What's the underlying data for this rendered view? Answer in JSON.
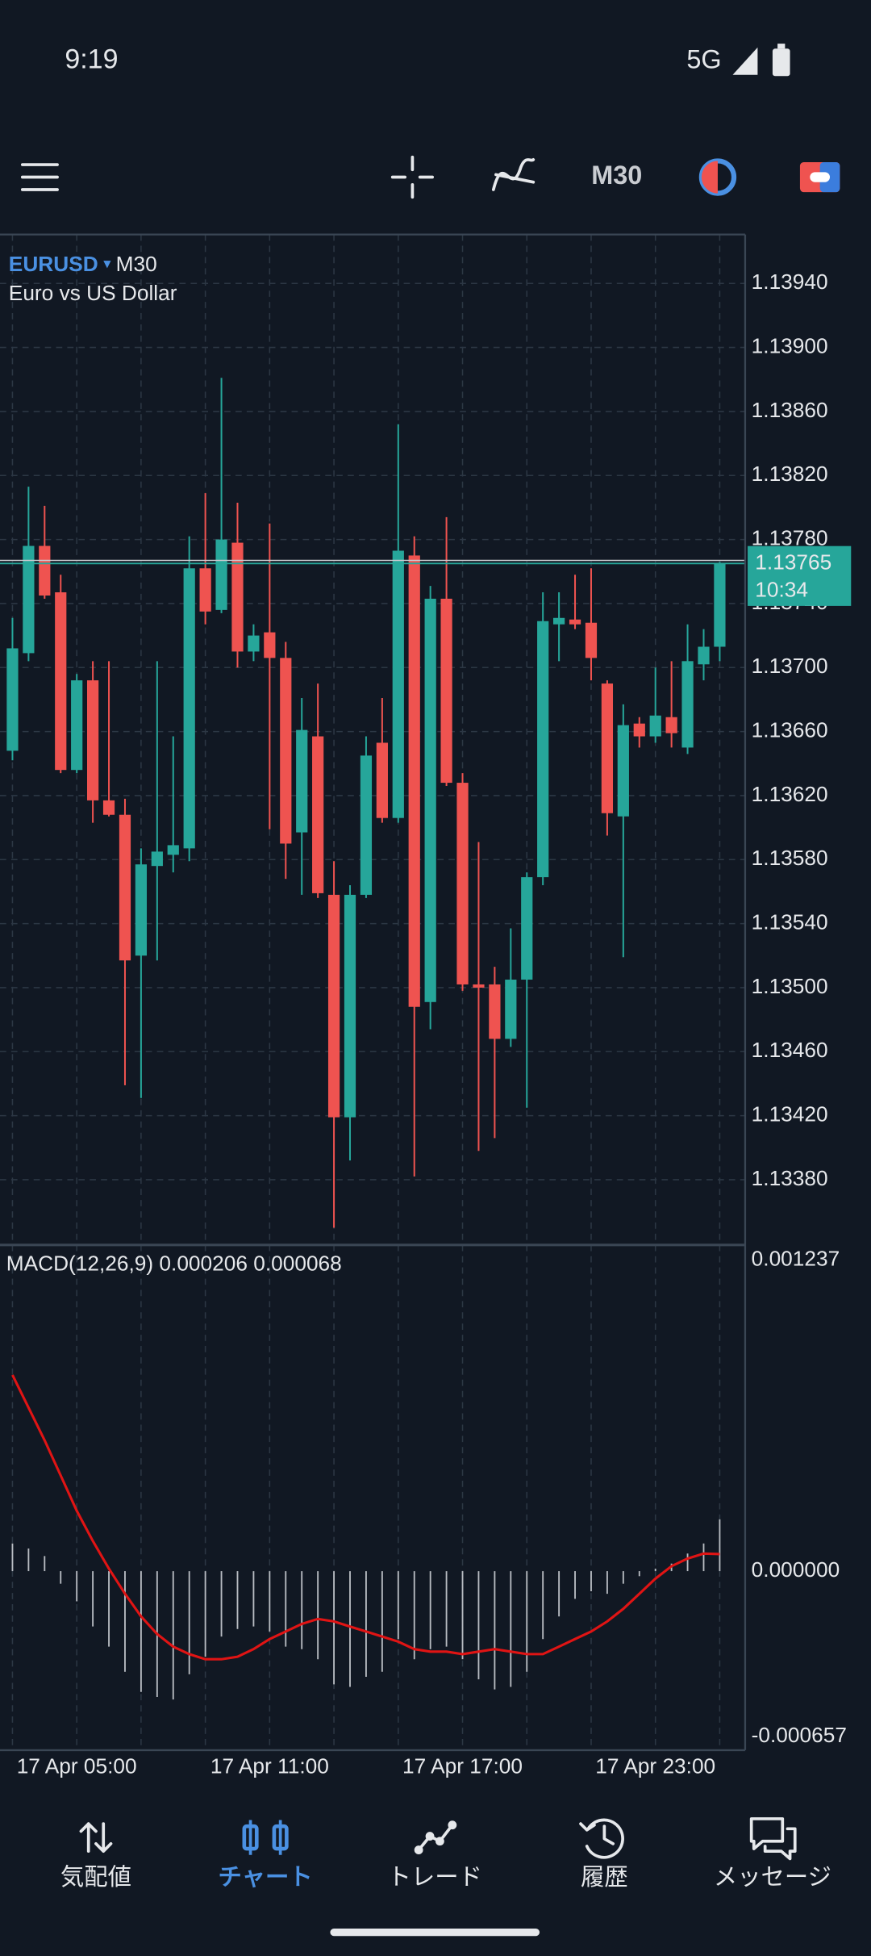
{
  "status_bar": {
    "time": "9:19",
    "network": "5G"
  },
  "toolbar": {
    "timeframe": "M30"
  },
  "chart_data": [
    {
      "type": "candlestick",
      "symbol": "EURUSD",
      "timeframe": "M30",
      "description": "Euro vs US Dollar",
      "categories": [
        null,
        null,
        null,
        null,
        "17 Apr 05:00",
        null,
        null,
        null,
        null,
        null,
        null,
        null,
        null,
        null,
        null,
        null,
        "17 Apr 11:00",
        null,
        null,
        null,
        null,
        null,
        null,
        null,
        null,
        null,
        null,
        null,
        "17 Apr 17:00",
        null,
        null,
        null,
        null,
        null,
        null,
        null,
        null,
        null,
        null,
        null,
        "17 Apr 23:00",
        null,
        null,
        null,
        null
      ],
      "open": [
        1.13648,
        1.13709,
        1.13776,
        1.13747,
        1.13636,
        1.13692,
        1.13617,
        1.13608,
        1.1352,
        1.13576,
        1.13583,
        1.13587,
        1.13762,
        1.13736,
        1.13778,
        1.1371,
        1.13722,
        1.13706,
        1.13597,
        1.13657,
        1.13558,
        1.13419,
        1.13558,
        1.13653,
        1.13606,
        1.1377,
        1.13491,
        1.13743,
        1.13628,
        1.13502,
        1.13502,
        1.13468,
        1.13505,
        1.13569,
        1.13727,
        1.1373,
        1.13728,
        1.1369,
        1.13607,
        1.13665,
        1.13657,
        1.13669,
        1.1365,
        1.13702,
        1.13713
      ],
      "high": [
        1.13731,
        1.13813,
        1.13801,
        1.13758,
        1.13696,
        1.13704,
        1.13704,
        1.13618,
        1.13587,
        1.13704,
        1.13657,
        1.13782,
        1.13809,
        1.13881,
        1.13803,
        1.13727,
        1.1379,
        1.13716,
        1.13681,
        1.1369,
        1.13579,
        1.13564,
        1.13657,
        1.13681,
        1.13852,
        1.13782,
        1.13751,
        1.13794,
        1.13634,
        1.13591,
        1.13513,
        1.13537,
        1.13572,
        1.13747,
        1.13747,
        1.13758,
        1.13762,
        1.13692,
        1.13677,
        1.13669,
        1.137,
        1.13704,
        1.13727,
        1.13724,
        1.13766
      ],
      "low": [
        1.13642,
        1.13704,
        1.13743,
        1.13634,
        1.13634,
        1.13603,
        1.13607,
        1.13439,
        1.13431,
        1.13517,
        1.13572,
        1.13579,
        1.13727,
        1.13734,
        1.137,
        1.13704,
        1.13599,
        1.13568,
        1.13558,
        1.13556,
        1.1335,
        1.13392,
        1.13556,
        1.13603,
        1.13603,
        1.13382,
        1.13474,
        1.13626,
        1.13498,
        1.13398,
        1.13406,
        1.13463,
        1.13425,
        1.13564,
        1.13704,
        1.13724,
        1.13692,
        1.13595,
        1.13519,
        1.1365,
        1.13653,
        1.1365,
        1.13646,
        1.13692,
        1.13704
      ],
      "close": [
        1.13712,
        1.13776,
        1.13745,
        1.13636,
        1.13692,
        1.13617,
        1.13608,
        1.13517,
        1.13577,
        1.13585,
        1.13589,
        1.13762,
        1.13735,
        1.1378,
        1.1371,
        1.1372,
        1.13706,
        1.1359,
        1.13661,
        1.13559,
        1.13419,
        1.13558,
        1.13645,
        1.13606,
        1.13773,
        1.13488,
        1.13743,
        1.13628,
        1.13502,
        1.135,
        1.13468,
        1.13505,
        1.13569,
        1.13729,
        1.13731,
        1.13727,
        1.13706,
        1.13609,
        1.13664,
        1.13657,
        1.1367,
        1.13659,
        1.13704,
        1.13713,
        1.13765
      ],
      "up_color": "#26a69a",
      "down_color": "#ef5350",
      "ylim": [
        1.1334,
        1.13969
      ],
      "yticks": [
        {
          "value": 1.1338,
          "label": "1.13380"
        },
        {
          "value": 1.1342,
          "label": "1.13420"
        },
        {
          "value": 1.1346,
          "label": "1.13460"
        },
        {
          "value": 1.135,
          "label": "1.13500"
        },
        {
          "value": 1.1354,
          "label": "1.13540"
        },
        {
          "value": 1.1358,
          "label": "1.13580"
        },
        {
          "value": 1.1362,
          "label": "1.13620"
        },
        {
          "value": 1.1366,
          "label": "1.13660"
        },
        {
          "value": 1.137,
          "label": "1.13700"
        },
        {
          "value": 1.1374,
          "label": "1.13740"
        },
        {
          "value": 1.1378,
          "label": "1.13780"
        },
        {
          "value": 1.1382,
          "label": "1.13820"
        },
        {
          "value": 1.1386,
          "label": "1.13860"
        },
        {
          "value": 1.139,
          "label": "1.13900"
        },
        {
          "value": 1.1394,
          "label": "1.13940"
        }
      ],
      "grid": true,
      "current_price": {
        "value": 1.13765,
        "label": "1.13765"
      },
      "timer": "10:34"
    },
    {
      "type": "macd",
      "title": "MACD(12,26,9) 0.000206 0.000068",
      "series": [
        {
          "type": "bar",
          "color": "#b8bcc2",
          "values": [
            0.00011,
            9e-05,
            6e-05,
            -5e-05,
            -0.00012,
            -0.00022,
            -0.0003,
            -0.0004,
            -0.00048,
            -0.0005,
            -0.00051,
            -0.00041,
            -0.00034,
            -0.00026,
            -0.00023,
            -0.00022,
            -0.00024,
            -0.0003,
            -0.00031,
            -0.00035,
            -0.00045,
            -0.00046,
            -0.00042,
            -0.0004,
            -0.00027,
            -0.00035,
            -0.00031,
            -0.0003,
            -0.00035,
            -0.00043,
            -0.00047,
            -0.00046,
            -0.0004,
            -0.00027,
            -0.00018,
            -0.00011,
            -8e-05,
            -9e-05,
            -5e-05,
            -2e-05,
            1e-05,
            3e-05,
            7e-05,
            0.00011,
            0.000206
          ]
        },
        {
          "type": "line",
          "color": "#e01414",
          "values": [
            0.00078,
            0.00065,
            0.00052,
            0.00038,
            0.00024,
            0.00012,
            1e-05,
            -9e-05,
            -0.00018,
            -0.00025,
            -0.0003,
            -0.00033,
            -0.00035,
            -0.00035,
            -0.00034,
            -0.00031,
            -0.00027,
            -0.00024,
            -0.00021,
            -0.00019,
            -0.0002,
            -0.00022,
            -0.00024,
            -0.00026,
            -0.00028,
            -0.00031,
            -0.00032,
            -0.00032,
            -0.00033,
            -0.00032,
            -0.00031,
            -0.00032,
            -0.00033,
            -0.00033,
            -0.0003,
            -0.00027,
            -0.00024,
            -0.0002,
            -0.00015,
            -9e-05,
            -3e-05,
            2e-05,
            5e-05,
            7e-05,
            6.8e-05
          ]
        }
      ],
      "ylim": [
        -0.000657,
        0.001237
      ],
      "yticks": [
        -0.000657,
        {
          "value": 0,
          "label": "0.000000"
        },
        0.001237
      ]
    }
  ],
  "nav": [
    "気配値",
    "チャート",
    "トレード",
    "履歴",
    "メッセージ"
  ]
}
